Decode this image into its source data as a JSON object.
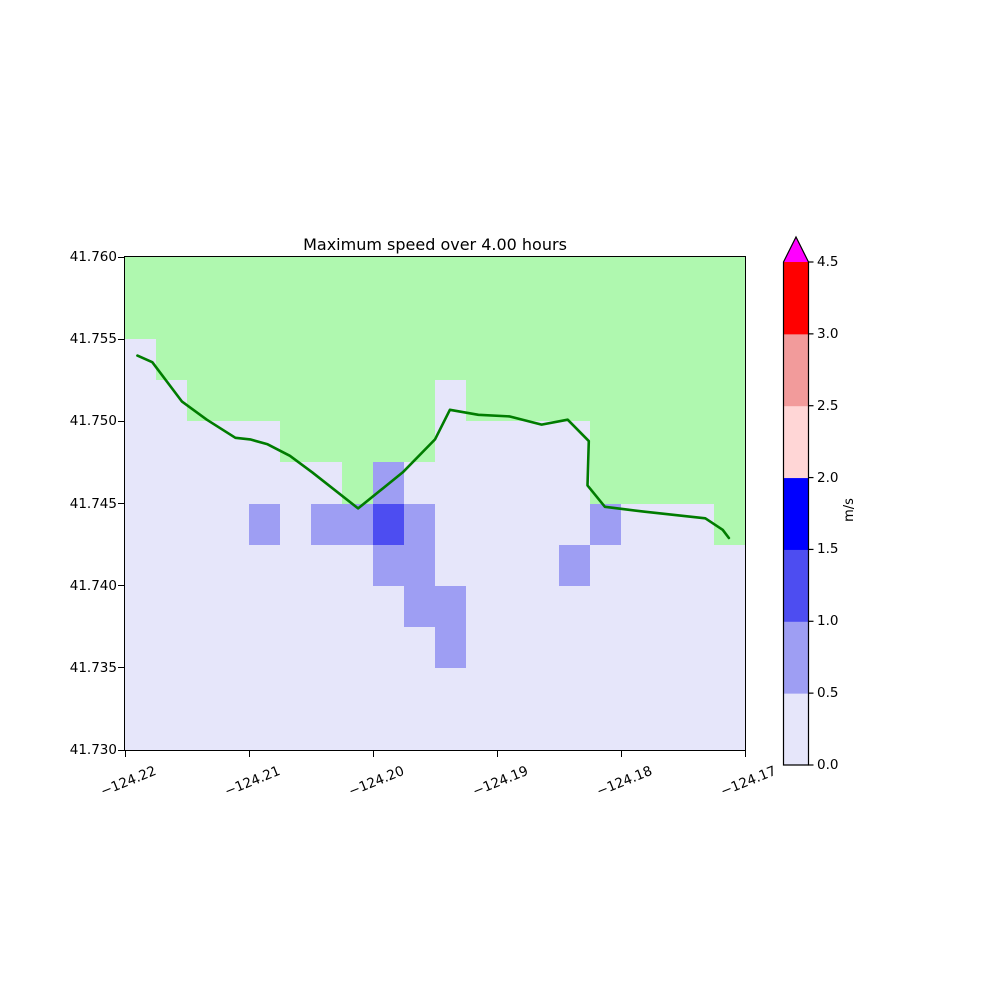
{
  "title": "Maximum speed over 4.00 hours",
  "axes": {
    "xlim": [
      -124.22,
      -124.17
    ],
    "ylim": [
      41.73,
      41.76
    ],
    "xtick_values": [
      -124.22,
      -124.21,
      -124.2,
      -124.19,
      -124.18,
      -124.17
    ],
    "xtick_labels": [
      "−124.22",
      "−124.21",
      "−124.20",
      "−124.19",
      "−124.18",
      "−124.17"
    ],
    "ytick_values": [
      41.76,
      41.755,
      41.75,
      41.745,
      41.74,
      41.735,
      41.73
    ],
    "ytick_labels": [
      "41.760",
      "41.755",
      "41.750",
      "41.745",
      "41.740",
      "41.735",
      "41.730"
    ]
  },
  "chart_data": {
    "type": "heatmap",
    "title": "Maximum speed over 4.00 hours",
    "xlabel": "",
    "ylabel": "",
    "units": "m/s",
    "grid_cell_size_deg": 0.0025,
    "grid_origin": {
      "lon_min": -124.22,
      "lat_max": 41.76
    },
    "grid_legend": {
      "G": {
        "meaning": "land",
        "color": "#AFF8AF"
      },
      "W": {
        "meaning": "water speed 0.0-0.5 m/s",
        "color": "#E6E6FA"
      },
      "P": {
        "meaning": "water speed 0.5-1.0 m/s",
        "color": "#9E9EF3"
      },
      "B": {
        "meaning": "water speed 1.0-1.5 m/s",
        "color": "#4D4DF1"
      }
    },
    "grid_rows_top_to_bottom": [
      "GGGGGGGGGGGGGGGGGGGG",
      "GGGGGGGGGGGGGGGGGGGG",
      "WGGGGGGGGGGGGGGGGGGG",
      "WWGGGGGGGGWGGGGGGGGG",
      "WWWWWGGGGGWWWWWGGGGG",
      "WWWWWWWGPWWWWWWGGGGG",
      "WWWWPWPPBPWWWWWPWWWG",
      "WWWWWWWWPPWWWWPWWWWW",
      "WWWWWWWWWPPWWWWWWWWW",
      "WWWWWWWWWWPWWWWWWWWW",
      "WWWWWWWWWWWWWWWWWWWW",
      "WWWWWWWWWWWWWWWWWWWW"
    ],
    "coastline": {
      "color": "#007C00",
      "width": 2.6,
      "points_lonlat": [
        [
          -124.219,
          41.754
        ],
        [
          -124.2178,
          41.7536
        ],
        [
          -124.2154,
          41.7512
        ],
        [
          -124.2134,
          41.7501
        ],
        [
          -124.2111,
          41.749
        ],
        [
          -124.2099,
          41.7489
        ],
        [
          -124.2085,
          41.7486
        ],
        [
          -124.2067,
          41.7479
        ],
        [
          -124.2049,
          41.7469
        ],
        [
          -124.2012,
          41.7447
        ],
        [
          -124.1976,
          41.7469
        ],
        [
          -124.195,
          41.7489
        ],
        [
          -124.1938,
          41.7507
        ],
        [
          -124.1915,
          41.7504
        ],
        [
          -124.189,
          41.7503
        ],
        [
          -124.1864,
          41.7498
        ],
        [
          -124.1843,
          41.7501
        ],
        [
          -124.1826,
          41.7488
        ],
        [
          -124.1827,
          41.7461
        ],
        [
          -124.1813,
          41.7448
        ],
        [
          -124.1781,
          41.7445
        ],
        [
          -124.1732,
          41.7441
        ],
        [
          -124.1718,
          41.7434
        ],
        [
          -124.1713,
          41.7429
        ]
      ]
    },
    "colorbar": {
      "label": "m/s",
      "boundaries": [
        0.0,
        0.5,
        1.0,
        1.5,
        2.0,
        2.5,
        3.0,
        4.5
      ],
      "tick_labels": [
        "0.0",
        "0.5",
        "1.0",
        "1.5",
        "2.0",
        "2.5",
        "3.0",
        "4.5"
      ],
      "segment_colors_bottom_to_top": [
        "#E6E6FA",
        "#9E9EF3",
        "#4D4DF1",
        "#0000FF",
        "#FFD6D6",
        "#F29B9B",
        "#FF0000"
      ],
      "over_color": "#FF00FF"
    }
  }
}
